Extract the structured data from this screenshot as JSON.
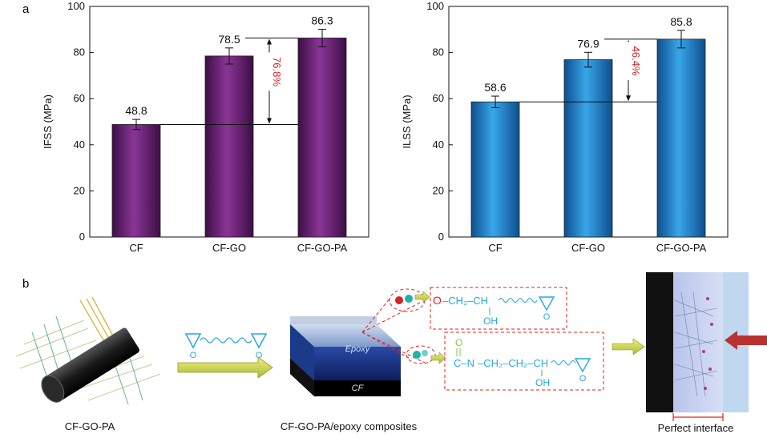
{
  "panel_a_label": "a",
  "panel_b_label": "b",
  "chart_data": [
    {
      "type": "bar",
      "categories": [
        "CF",
        "CF-GO",
        "CF-GO-PA"
      ],
      "values": [
        48.8,
        78.5,
        86.3
      ],
      "errors": [
        2.2,
        3.5,
        3.8
      ],
      "value_labels": [
        "48.8",
        "78.5",
        "86.3"
      ],
      "ylabel": "IFSS (MPa)",
      "ylim": [
        0,
        100
      ],
      "yticks": [
        "0",
        "20",
        "40",
        "60",
        "80",
        "100"
      ],
      "annotation": "76.8%",
      "bar_color": "#7a2b82"
    },
    {
      "type": "bar",
      "categories": [
        "CF",
        "CF-GO",
        "CF-GO-PA"
      ],
      "values": [
        58.6,
        76.9,
        85.8
      ],
      "errors": [
        2.5,
        3.2,
        3.8
      ],
      "value_labels": [
        "58.6",
        "76.9",
        "85.8"
      ],
      "ylabel": "ILSS (MPa)",
      "ylim": [
        0,
        100
      ],
      "yticks": [
        "0",
        "20",
        "40",
        "60",
        "80",
        "100"
      ],
      "annotation": "46.4%",
      "bar_color": "#2f8fd8"
    }
  ],
  "schematic": {
    "captions": [
      "CF-GO-PA",
      "CF-GO-PA/epoxy composites",
      "Perfect interface"
    ],
    "block_top_label": "Epoxy",
    "block_bottom_label": "CF",
    "epoxy_monomer_o_labels": [
      "O",
      "O"
    ],
    "formula1": {
      "o": "O",
      "chain": "–CH₂–CH",
      "oh": "OH",
      "epoxide_o": "O"
    },
    "formula2": {
      "carbonyl_o": "O",
      "c_n": "C–N",
      "chain": "–CH₂–CH₂–CH",
      "oh": "OH",
      "epoxide_o": "O"
    }
  }
}
